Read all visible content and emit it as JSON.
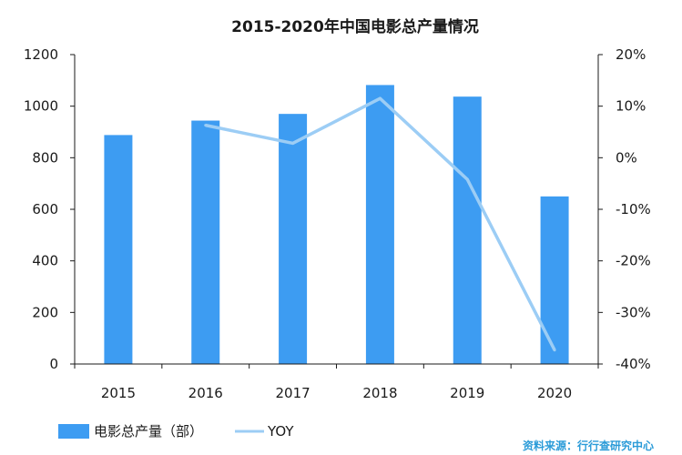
{
  "colors": {
    "bar": "#3d9cf2",
    "line": "#9ccdf5",
    "axis": "#1a1a1a",
    "source": "#2a9bd8"
  },
  "chart_data": {
    "type": "bar",
    "title": "2015-2020年中国电影总产量情况",
    "categories": [
      "2015",
      "2016",
      "2017",
      "2018",
      "2019",
      "2020"
    ],
    "series": [
      {
        "name": "电影总产量（部）",
        "type": "bar",
        "axis": "left",
        "values": [
          888,
          944,
          970,
          1082,
          1037,
          650
        ]
      },
      {
        "name": "YOY",
        "type": "line",
        "axis": "right",
        "values": [
          null,
          6.3,
          2.8,
          11.5,
          -4.2,
          -37.3
        ]
      }
    ],
    "ylim": [
      0,
      1200
    ],
    "y_ticks": [
      "0",
      "200",
      "400",
      "600",
      "800",
      "1000",
      "1200"
    ],
    "y2lim": [
      -40,
      20
    ],
    "y2_ticks": [
      "-40%",
      "-30%",
      "-20%",
      "-10%",
      "0%",
      "10%",
      "20%"
    ],
    "legend_position": "bottom-left",
    "grid": false,
    "source": "资料来源：行行查研究中心"
  }
}
